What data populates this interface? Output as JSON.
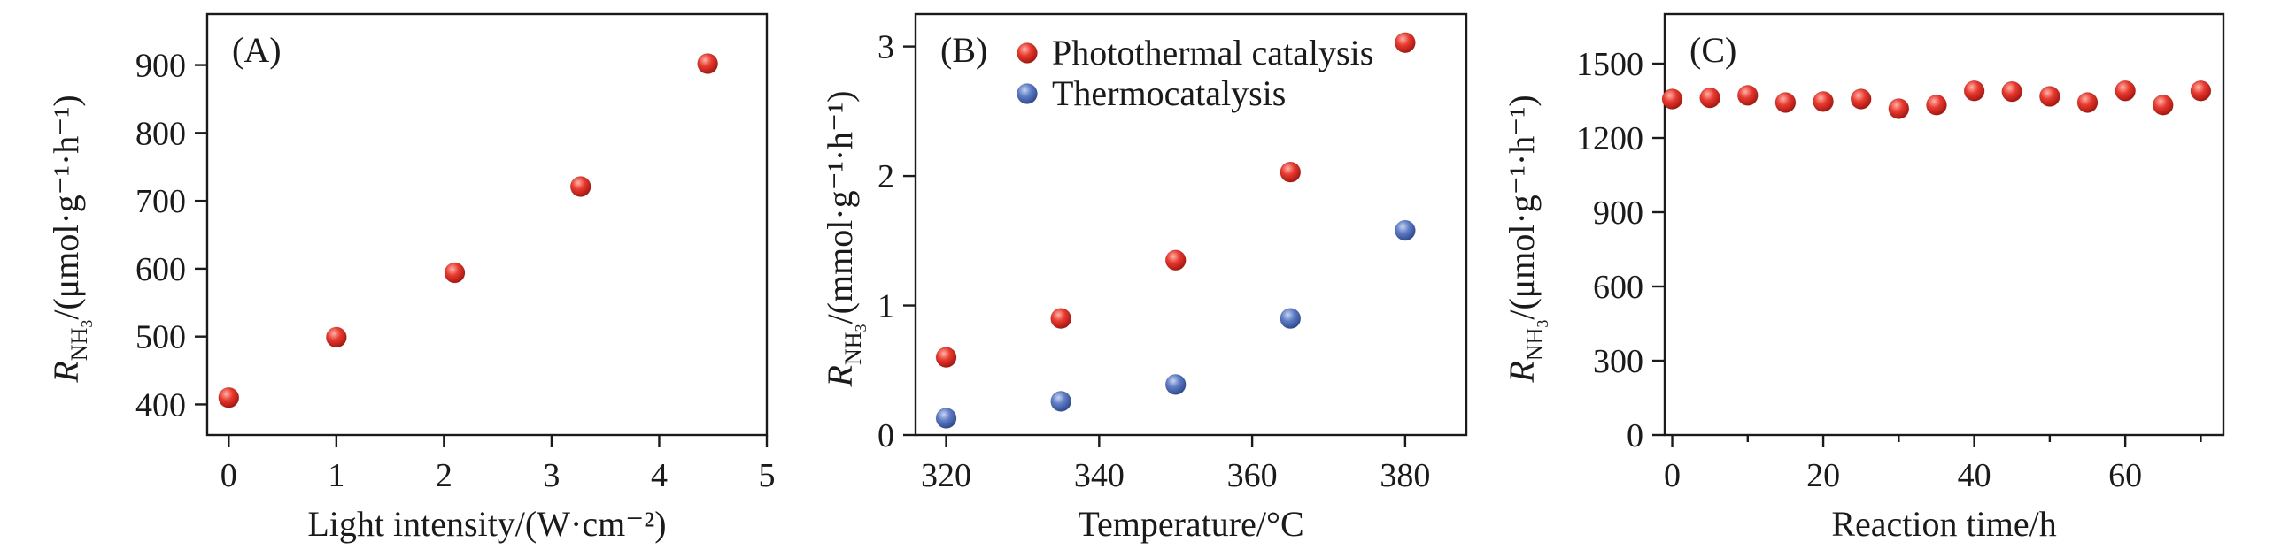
{
  "colors": {
    "photothermal": "#e0302c",
    "thermo": "#5a78c0",
    "axis": "#1a1a1a"
  },
  "chart_data": [
    {
      "type": "scatter",
      "panel_label": "(A)",
      "xlabel": "Light intensity/(W·cm⁻²)",
      "ylabel": {
        "symbol": "R",
        "subscript": "NH",
        "subscript2": "3",
        "unit": "/(μmol·g⁻¹·h⁻¹)"
      },
      "xlim": [
        -0.2,
        5
      ],
      "ylim": [
        355,
        975
      ],
      "xticks": [
        0,
        1,
        2,
        3,
        4,
        5
      ],
      "yticks": [
        400,
        500,
        600,
        700,
        800,
        900
      ],
      "grid": false,
      "legend": null,
      "series": [
        {
          "color_key": "photothermal",
          "x": [
            0,
            1,
            2.1,
            3.27,
            4.45
          ],
          "y": [
            410,
            499,
            594,
            721,
            902
          ]
        }
      ]
    },
    {
      "type": "scatter",
      "panel_label": "(B)",
      "xlabel": "Temperature/°C",
      "ylabel": {
        "symbol": "R",
        "subscript": "NH",
        "subscript2": "3",
        "unit": "/(mmol·g⁻¹·h⁻¹)"
      },
      "xlim": [
        316,
        388
      ],
      "ylim": [
        0,
        3.25
      ],
      "xticks": [
        320,
        340,
        360,
        380
      ],
      "yticks": [
        0,
        1,
        2,
        3
      ],
      "grid": false,
      "legend": "top-left",
      "series": [
        {
          "name": "Photothermal catalysis",
          "color_key": "photothermal",
          "x": [
            320,
            335,
            350,
            365,
            380
          ],
          "y": [
            0.6,
            0.9,
            1.35,
            2.03,
            3.03
          ]
        },
        {
          "name": "Thermocatalysis",
          "color_key": "thermo",
          "x": [
            320,
            335,
            350,
            365,
            380
          ],
          "y": [
            0.13,
            0.26,
            0.39,
            0.9,
            1.58
          ]
        }
      ]
    },
    {
      "type": "scatter",
      "panel_label": "(C)",
      "xlabel": "Reaction time/h",
      "ylabel": {
        "symbol": "R",
        "subscript": "NH",
        "subscript2": "3",
        "unit": "/(μmol·g⁻¹·h⁻¹)"
      },
      "xlim": [
        -1,
        73
      ],
      "ylim": [
        0,
        1700
      ],
      "xticks": [
        0,
        20,
        40,
        60
      ],
      "xminor": [
        10,
        30,
        50,
        70
      ],
      "yticks": [
        0,
        300,
        600,
        900,
        1200,
        1500
      ],
      "grid": false,
      "legend": null,
      "series": [
        {
          "color_key": "photothermal",
          "x": [
            0,
            5,
            10,
            15,
            20,
            25,
            30,
            35,
            40,
            45,
            50,
            55,
            60,
            65,
            70
          ],
          "y": [
            1357,
            1362,
            1372,
            1343,
            1347,
            1357,
            1318,
            1333,
            1390,
            1387,
            1368,
            1343,
            1390,
            1333,
            1390
          ]
        }
      ]
    }
  ]
}
